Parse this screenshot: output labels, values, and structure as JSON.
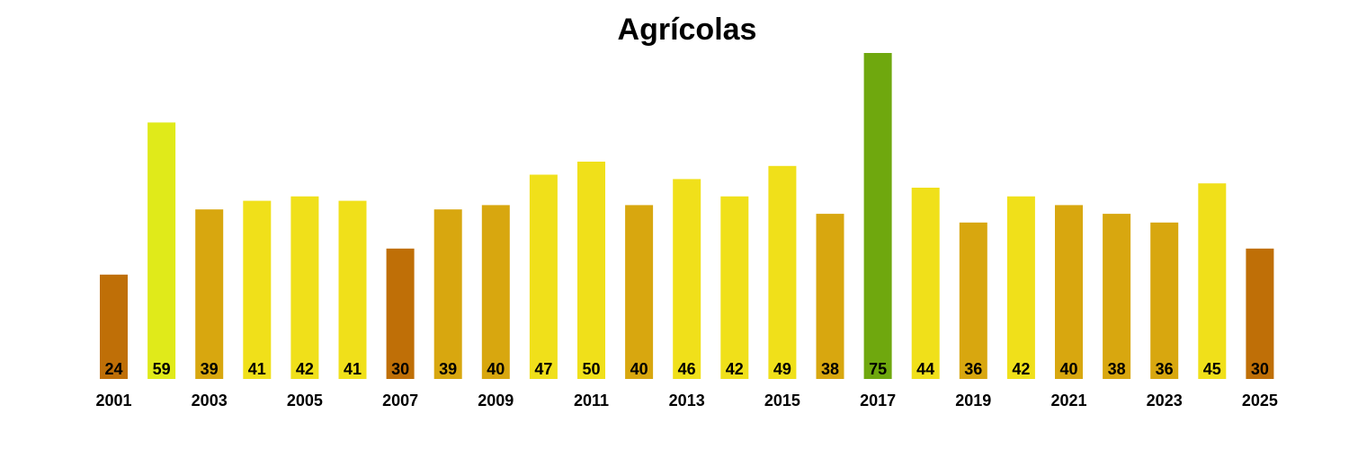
{
  "chart_data": {
    "type": "bar",
    "title": "Agrícolas",
    "xlabel": "",
    "ylabel": "",
    "ylim": [
      0,
      75
    ],
    "grid": false,
    "legend": "none",
    "x_tick_labels": [
      "2001",
      "2003",
      "2005",
      "2007",
      "2009",
      "2011",
      "2013",
      "2015",
      "2017",
      "2019",
      "2021",
      "2023",
      "2025"
    ],
    "categories": [
      "2001",
      "2002",
      "2003",
      "2004",
      "2005",
      "2006",
      "2007",
      "2008",
      "2009",
      "2010",
      "2011",
      "2012",
      "2013",
      "2014",
      "2015",
      "2016",
      "2017",
      "2018",
      "2019",
      "2020",
      "2021",
      "2022",
      "2023",
      "2024",
      "2025"
    ],
    "values": [
      24,
      59,
      39,
      41,
      42,
      41,
      30,
      39,
      40,
      47,
      50,
      40,
      46,
      42,
      49,
      38,
      75,
      44,
      36,
      42,
      40,
      38,
      36,
      45,
      30
    ],
    "colors": {
      "low": "#bf6f07",
      "mid": "#d8a70f",
      "high": "#f0e01a",
      "very_high": "#e0ea1a",
      "max": "#6fa80e"
    }
  }
}
